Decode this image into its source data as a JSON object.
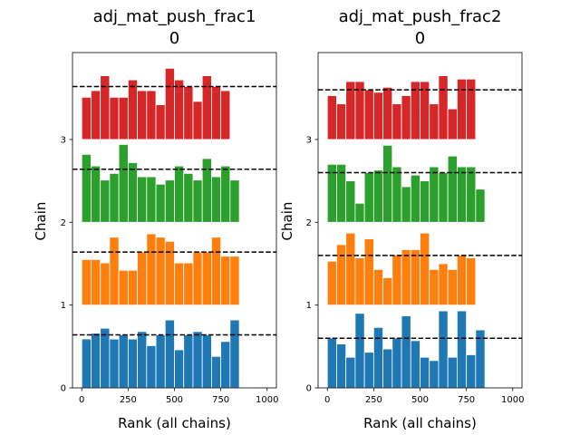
{
  "chart_data": [
    {
      "type": "bar",
      "title_lines": [
        "adj_mat_push_frac1",
        "0"
      ],
      "xlabel": "Rank (all chains)",
      "ylabel": "Chain",
      "xlim": [
        -50,
        1050
      ],
      "ylim": [
        0,
        4.05
      ],
      "xticks": [
        0,
        250,
        500,
        750,
        1000
      ],
      "yticks": [
        0,
        1,
        2,
        3
      ],
      "bin_edges": [
        0,
        50,
        100,
        150,
        200,
        250,
        300,
        350,
        400,
        450,
        500,
        550,
        600,
        650,
        700,
        750,
        800,
        850,
        900,
        950,
        1000
      ],
      "series": [
        {
          "color": "#1f77b4",
          "offset": 0,
          "ref": 0.64,
          "values": [
            0.59,
            0.66,
            0.72,
            0.59,
            0.64,
            0.59,
            0.68,
            0.51,
            0.64,
            0.82,
            0.46,
            0.64,
            0.68,
            0.64,
            0.38,
            0.56,
            0.82
          ]
        },
        {
          "color": "#ff7f0e",
          "offset": 1,
          "ref": 0.64,
          "values": [
            0.55,
            0.55,
            0.51,
            0.82,
            0.42,
            0.42,
            0.64,
            0.86,
            0.82,
            0.77,
            0.51,
            0.51,
            0.64,
            0.64,
            0.82,
            0.59,
            0.59
          ]
        },
        {
          "color": "#2ca02c",
          "offset": 2,
          "ref": 0.64,
          "values": [
            0.82,
            0.68,
            0.51,
            0.59,
            0.94,
            0.72,
            0.55,
            0.55,
            0.46,
            0.51,
            0.68,
            0.59,
            0.51,
            0.77,
            0.55,
            0.68,
            0.51
          ]
        },
        {
          "color": "#d62728",
          "offset": 3,
          "ref": 0.64,
          "values": [
            0.51,
            0.59,
            0.77,
            0.51,
            0.51,
            0.72,
            0.59,
            0.59,
            0.42,
            0.86,
            0.72,
            0.64,
            0.46,
            0.77,
            0.64,
            0.59
          ]
        }
      ]
    },
    {
      "type": "bar",
      "title_lines": [
        "adj_mat_push_frac2",
        "0"
      ],
      "xlabel": "Rank (all chains)",
      "ylabel": "Chain",
      "xlim": [
        -50,
        1050
      ],
      "ylim": [
        0,
        4.05
      ],
      "xticks": [
        0,
        250,
        500,
        750,
        1000
      ],
      "yticks": [
        0,
        1,
        2,
        3
      ],
      "bin_edges": [
        0,
        50,
        100,
        150,
        200,
        250,
        300,
        350,
        400,
        450,
        500,
        550,
        600,
        650,
        700,
        750,
        800,
        850,
        900,
        950,
        1000
      ],
      "series": [
        {
          "color": "#1f77b4",
          "offset": 0,
          "ref": 0.6,
          "values": [
            0.6,
            0.53,
            0.37,
            0.9,
            0.43,
            0.73,
            0.47,
            0.6,
            0.87,
            0.57,
            0.37,
            0.33,
            0.93,
            0.37,
            0.93,
            0.4,
            0.7
          ]
        },
        {
          "color": "#ff7f0e",
          "offset": 1,
          "ref": 0.6,
          "values": [
            0.53,
            0.73,
            0.87,
            0.57,
            0.8,
            0.43,
            0.33,
            0.6,
            0.67,
            0.67,
            0.87,
            0.43,
            0.5,
            0.43,
            0.6,
            0.57
          ]
        },
        {
          "color": "#2ca02c",
          "offset": 2,
          "ref": 0.6,
          "values": [
            0.7,
            0.7,
            0.5,
            0.23,
            0.6,
            0.63,
            0.93,
            0.67,
            0.43,
            0.57,
            0.5,
            0.67,
            0.6,
            0.8,
            0.67,
            0.67,
            0.4
          ]
        },
        {
          "color": "#d62728",
          "offset": 3,
          "ref": 0.6,
          "values": [
            0.53,
            0.43,
            0.7,
            0.7,
            0.6,
            0.57,
            0.63,
            0.43,
            0.53,
            0.7,
            0.7,
            0.43,
            0.77,
            0.37,
            0.73,
            0.73
          ]
        }
      ]
    }
  ]
}
